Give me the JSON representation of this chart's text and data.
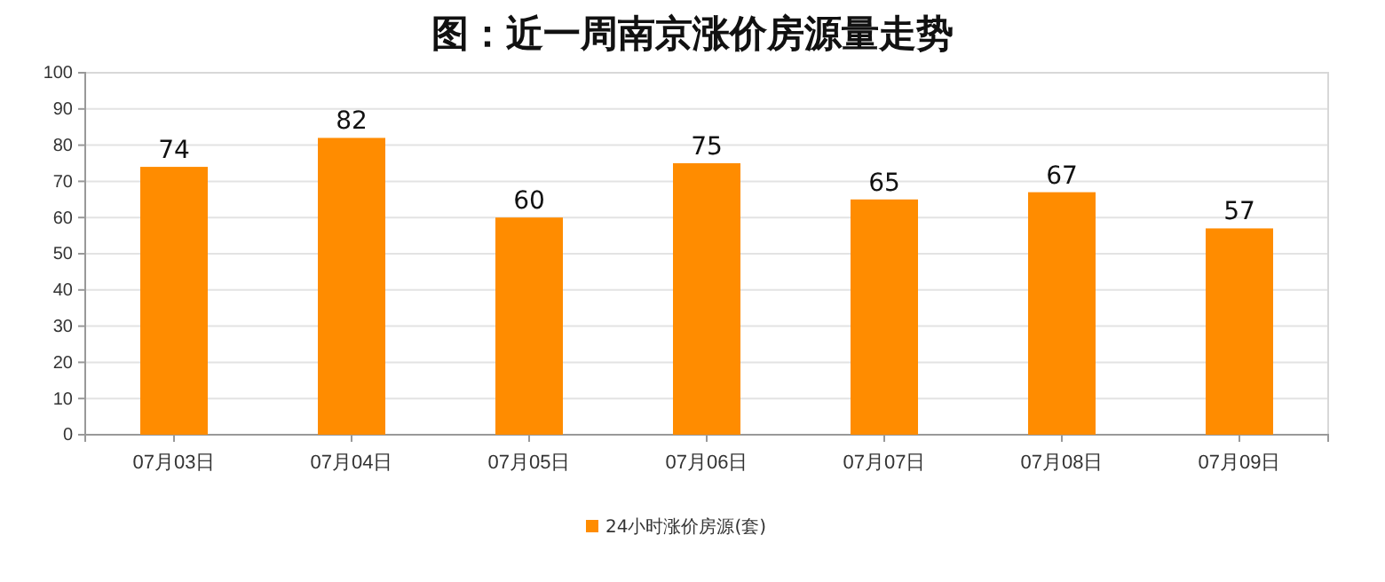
{
  "chart_data": {
    "type": "bar",
    "title": "图：近一周南京涨价房源量走势",
    "categories": [
      "07月03日",
      "07月04日",
      "07月05日",
      "07月06日",
      "07月07日",
      "07月08日",
      "07月09日"
    ],
    "series": [
      {
        "name": "24小时涨价房源(套)",
        "color": "#ff8c00",
        "values": [
          74,
          82,
          60,
          75,
          65,
          67,
          57
        ]
      }
    ],
    "ylim": [
      0,
      100
    ],
    "yticks": [
      0,
      10,
      20,
      30,
      40,
      50,
      60,
      70,
      80,
      90,
      100
    ],
    "grid": "y",
    "legend": "bottom",
    "data_labels": true
  }
}
